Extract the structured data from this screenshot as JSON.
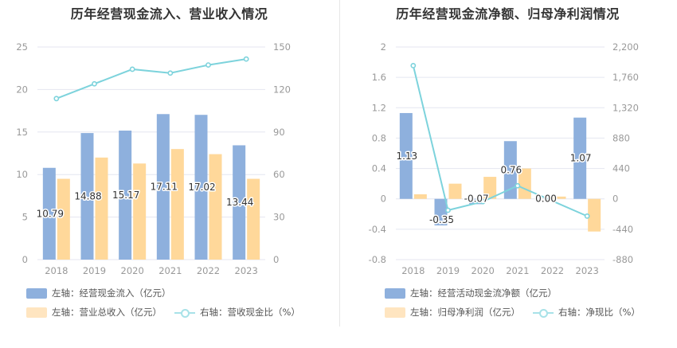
{
  "colors": {
    "bar_blue": "#8eb0dd",
    "bar_orange": "#ffd89a",
    "line_cyan": "#7dd3dc",
    "grid": "#e4e6f0",
    "axis_text": "#999999"
  },
  "left_chart": {
    "title": "历年经营现金流入、营业收入情况",
    "legend": {
      "bar1": "左轴：经营现金流入（亿元）",
      "bar2": "左轴：营业总收入（亿元）",
      "line": "右轴：营收现金比（%）"
    }
  },
  "right_chart": {
    "title": "历年经营现金流净额、归母净利润情况",
    "legend": {
      "bar1": "左轴：经营活动现金流净额（亿元）",
      "bar2": "左轴：归母净利润（亿元）",
      "line": "右轴：净现比（%）"
    }
  },
  "chart_data": [
    {
      "type": "bar",
      "title": "历年经营现金流入、营业收入情况",
      "categories": [
        "2018",
        "2019",
        "2020",
        "2021",
        "2022",
        "2023"
      ],
      "left_axis": {
        "ylim": [
          0,
          25
        ],
        "ticks": [
          "0",
          "5",
          "10",
          "15",
          "20",
          "25"
        ]
      },
      "right_axis": {
        "ylim": [
          0,
          150
        ],
        "ticks": [
          "0",
          "30",
          "60",
          "90",
          "120",
          "150"
        ]
      },
      "series": [
        {
          "name": "左轴：经营现金流入（亿元）",
          "type": "bar",
          "axis": "left",
          "values": [
            10.79,
            14.88,
            15.17,
            17.11,
            17.02,
            13.44
          ],
          "labels": [
            "10.79",
            "14.88",
            "15.17",
            "17.11",
            "17.02",
            "13.44"
          ]
        },
        {
          "name": "左轴：营业总收入（亿元）",
          "type": "bar",
          "axis": "left",
          "values": [
            9.5,
            12.0,
            11.3,
            13.0,
            12.4,
            9.5
          ]
        },
        {
          "name": "右轴：营收现金比（%）",
          "type": "line",
          "axis": "right",
          "values": [
            113.6,
            124.0,
            134.3,
            131.6,
            137.3,
            141.5
          ]
        }
      ],
      "grid": true,
      "legend_position": "bottom-left"
    },
    {
      "type": "bar",
      "title": "历年经营现金流净额、归母净利润情况",
      "categories": [
        "2018",
        "2019",
        "2020",
        "2021",
        "2022",
        "2023"
      ],
      "left_axis": {
        "ylim": [
          -0.8,
          2
        ],
        "ticks": [
          "-0.8",
          "-0.4",
          "0",
          "0.4",
          "0.8",
          "1.2",
          "1.6",
          "2"
        ]
      },
      "right_axis": {
        "ylim": [
          -880,
          2200
        ],
        "ticks": [
          "-880",
          "-440",
          "0",
          "440",
          "880",
          "1,320",
          "1,760",
          "2,200"
        ]
      },
      "series": [
        {
          "name": "左轴：经营活动现金流净额（亿元）",
          "type": "bar",
          "axis": "left",
          "values": [
            1.13,
            -0.35,
            -0.07,
            0.76,
            0.0,
            1.07
          ],
          "labels": [
            "1.13",
            "-0.35",
            "-0.07",
            "0.76",
            "0.00",
            "1.07"
          ]
        },
        {
          "name": "左轴：归母净利润（亿元）",
          "type": "bar",
          "axis": "left",
          "values": [
            0.06,
            0.2,
            0.29,
            0.4,
            0.03,
            -0.43
          ]
        },
        {
          "name": "右轴：净现比（%）",
          "type": "line",
          "axis": "right",
          "values": [
            1930,
            -165,
            -40,
            190,
            null,
            -250
          ]
        }
      ],
      "grid": true,
      "legend_position": "bottom-left"
    }
  ]
}
